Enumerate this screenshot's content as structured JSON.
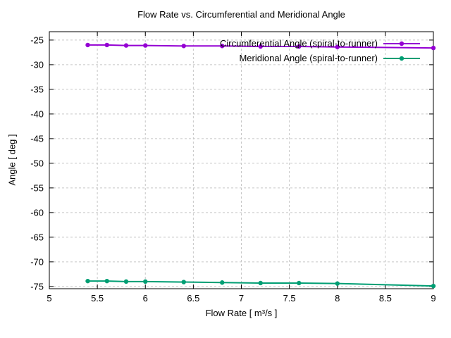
{
  "chart_data": {
    "type": "line",
    "title": "Flow Rate vs. Circumferential and Meridional Angle",
    "xlabel": "Flow Rate [ m³/s ]",
    "ylabel": "Angle [ deg ]",
    "xlim": [
      5,
      9
    ],
    "ylim": [
      -75,
      -25
    ],
    "x_ticks": [
      5,
      5.5,
      6,
      6.5,
      7,
      7.5,
      8,
      8.5,
      9
    ],
    "y_ticks": [
      -25,
      -30,
      -35,
      -40,
      -45,
      -50,
      -55,
      -60,
      -65,
      -70,
      -75
    ],
    "grid": true,
    "legend_position": "top-right-inside",
    "series": [
      {
        "name": "Circumferential Angle (spiral-to-runner)",
        "color": "#9400d3",
        "x": [
          5.4,
          5.6,
          5.8,
          6.0,
          6.4,
          6.8,
          7.2,
          7.6,
          8.0,
          9.0
        ],
        "values": [
          -26.0,
          -26.0,
          -26.1,
          -26.1,
          -26.2,
          -26.2,
          -26.3,
          -26.3,
          -26.4,
          -26.6
        ]
      },
      {
        "name": "Meridional Angle (spiral-to-runner)",
        "color": "#009e73",
        "x": [
          5.4,
          5.6,
          5.8,
          6.0,
          6.4,
          6.8,
          7.2,
          7.6,
          8.0,
          9.0
        ],
        "values": [
          -73.9,
          -73.9,
          -74.0,
          -74.0,
          -74.1,
          -74.2,
          -74.3,
          -74.3,
          -74.4,
          -74.9
        ]
      }
    ]
  }
}
